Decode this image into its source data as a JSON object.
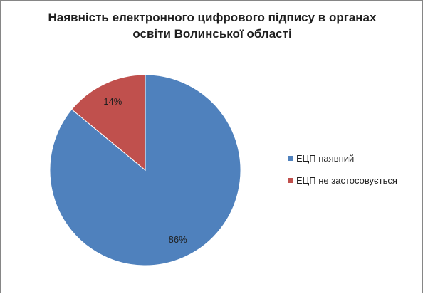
{
  "chart_data": {
    "type": "pie",
    "title": "Наявність електронного цифрового підпису в органах освіти Волинської області",
    "title_lines": [
      "Наявність електронного цифрового підпису в органах",
      "освіти Волинської області"
    ],
    "categories": [
      "ЕЦП наявний",
      "ЕЦП не застосовується"
    ],
    "values": [
      86,
      14
    ],
    "data_labels": [
      "86%",
      "14%"
    ],
    "colors": [
      "#4F81BD",
      "#C0504D"
    ],
    "legend_position": "right",
    "start_angle": "12 o'clock, clockwise"
  }
}
